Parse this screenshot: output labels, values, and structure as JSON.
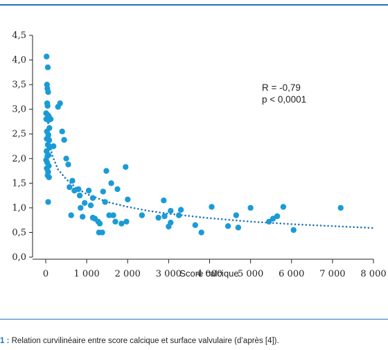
{
  "chart_data": {
    "type": "scatter",
    "xlabel": "Score calcique",
    "ylabel": "",
    "xlim": [
      0,
      8000
    ],
    "ylim": [
      0,
      4.5
    ],
    "x_ticks": [
      0,
      1000,
      2000,
      3000,
      4000,
      5000,
      6000,
      7000,
      8000
    ],
    "x_tick_labels": [
      "0",
      "1 000",
      "2 000",
      "3 000",
      "4 000",
      "5 000",
      "6 000",
      "7 000",
      "8 000"
    ],
    "y_ticks": [
      0,
      0.5,
      1.0,
      1.5,
      2.0,
      2.5,
      3.0,
      3.5,
      4.0,
      4.5
    ],
    "y_tick_labels": [
      "0,0",
      "0,5",
      "1,0",
      "1,5",
      "2,0",
      "2,5",
      "3,0",
      "3,5",
      "4,0",
      "4,5"
    ],
    "annotations": [
      "R = -0,79",
      "p < 0,0001"
    ],
    "point_color": "#1a9bd7",
    "trend_color": "#1e73be",
    "trend_style": "dotted",
    "grid": false,
    "points": [
      [
        20,
        4.07
      ],
      [
        50,
        3.85
      ],
      [
        30,
        3.5
      ],
      [
        40,
        3.42
      ],
      [
        60,
        3.35
      ],
      [
        35,
        3.12
      ],
      [
        45,
        3.07
      ],
      [
        10,
        2.92
      ],
      [
        55,
        2.88
      ],
      [
        15,
        2.8
      ],
      [
        80,
        2.85
      ],
      [
        70,
        2.78
      ],
      [
        120,
        2.8
      ],
      [
        90,
        2.62
      ],
      [
        30,
        2.55
      ],
      [
        65,
        2.48
      ],
      [
        25,
        2.4
      ],
      [
        85,
        2.37
      ],
      [
        50,
        2.28
      ],
      [
        95,
        2.22
      ],
      [
        20,
        2.15
      ],
      [
        70,
        2.07
      ],
      [
        40,
        2.05
      ],
      [
        10,
        1.97
      ],
      [
        35,
        1.92
      ],
      [
        75,
        1.85
      ],
      [
        25,
        1.8
      ],
      [
        60,
        1.73
      ],
      [
        45,
        1.66
      ],
      [
        80,
        1.62
      ],
      [
        60,
        1.12
      ],
      [
        190,
        2.25
      ],
      [
        300,
        3.05
      ],
      [
        350,
        3.12
      ],
      [
        400,
        2.55
      ],
      [
        450,
        2.38
      ],
      [
        500,
        2.0
      ],
      [
        550,
        1.88
      ],
      [
        580,
        1.42
      ],
      [
        650,
        1.55
      ],
      [
        700,
        1.35
      ],
      [
        620,
        0.85
      ],
      [
        800,
        1.38
      ],
      [
        830,
        1.25
      ],
      [
        850,
        1.0
      ],
      [
        900,
        0.82
      ],
      [
        950,
        1.1
      ],
      [
        1050,
        1.35
      ],
      [
        1100,
        1.05
      ],
      [
        1150,
        1.2
      ],
      [
        1200,
        0.78
      ],
      [
        1150,
        0.8
      ],
      [
        1280,
        0.72
      ],
      [
        1320,
        0.68
      ],
      [
        1300,
        0.5
      ],
      [
        1380,
        0.5
      ],
      [
        1400,
        1.33
      ],
      [
        1450,
        1.12
      ],
      [
        1480,
        1.75
      ],
      [
        1550,
        0.85
      ],
      [
        1600,
        1.5
      ],
      [
        1650,
        0.85
      ],
      [
        1700,
        0.72
      ],
      [
        1750,
        1.38
      ],
      [
        1850,
        0.68
      ],
      [
        1950,
        1.83
      ],
      [
        1970,
        0.72
      ],
      [
        2000,
        1.17
      ],
      [
        2350,
        0.85
      ],
      [
        2750,
        0.8
      ],
      [
        2900,
        0.83
      ],
      [
        2880,
        1.15
      ],
      [
        3000,
        0.62
      ],
      [
        3050,
        0.94
      ],
      [
        3050,
        0.7
      ],
      [
        3250,
        0.85
      ],
      [
        3300,
        0.96
      ],
      [
        3650,
        0.65
      ],
      [
        3800,
        0.5
      ],
      [
        4050,
        1.02
      ],
      [
        4450,
        0.63
      ],
      [
        4650,
        0.85
      ],
      [
        4700,
        0.6
      ],
      [
        5000,
        1.0
      ],
      [
        5450,
        0.72
      ],
      [
        5550,
        0.78
      ],
      [
        5650,
        0.83
      ],
      [
        5800,
        1.02
      ],
      [
        6050,
        0.55
      ],
      [
        7200,
        1.0
      ]
    ],
    "trend": [
      [
        60,
        2.72
      ],
      [
        150,
        2.08
      ],
      [
        300,
        1.78
      ],
      [
        500,
        1.58
      ],
      [
        750,
        1.4
      ],
      [
        1000,
        1.28
      ],
      [
        1500,
        1.12
      ],
      [
        2000,
        1.02
      ],
      [
        2500,
        0.94
      ],
      [
        3000,
        0.88
      ],
      [
        4000,
        0.79
      ],
      [
        5000,
        0.72
      ],
      [
        6000,
        0.67
      ],
      [
        7000,
        0.63
      ],
      [
        8000,
        0.59
      ]
    ]
  },
  "caption": {
    "lead": "1 :",
    "text": "Relation curvilinéaire entre score calcique et surface valvulaire (d’après [4])."
  }
}
